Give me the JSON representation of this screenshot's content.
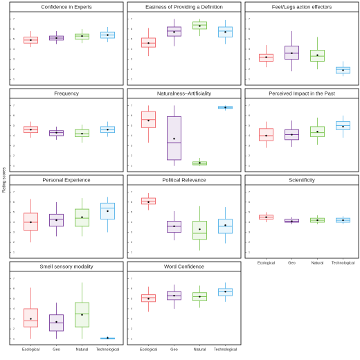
{
  "ylabel": "Rating scores",
  "categories": [
    "Ecological",
    "Geo",
    "Natural",
    "Technological"
  ],
  "colors": [
    "#f0676b",
    "#7b3f9e",
    "#7cc552",
    "#56b4e9"
  ],
  "ylim": [
    0.7,
    7.3
  ],
  "yticks": [
    1,
    2,
    3,
    4,
    5,
    6,
    7
  ],
  "chart_data": [
    {
      "type": "box",
      "title": "Confidence in Experts",
      "boxes": [
        {
          "low": 4.2,
          "q1": 4.6,
          "median": 4.9,
          "q3": 5.2,
          "high": 5.8,
          "mean": 4.9
        },
        {
          "low": 4.5,
          "q1": 4.9,
          "median": 5.1,
          "q3": 5.3,
          "high": 5.8,
          "mean": 5.1
        },
        {
          "low": 4.6,
          "q1": 5.0,
          "median": 5.3,
          "q3": 5.5,
          "high": 6.0,
          "mean": 5.3
        },
        {
          "low": 4.7,
          "q1": 5.1,
          "median": 5.4,
          "q3": 5.7,
          "high": 6.2,
          "mean": 5.4
        }
      ]
    },
    {
      "type": "box",
      "title": "Easiness of Providing a Definition",
      "boxes": [
        {
          "low": 3.3,
          "q1": 4.2,
          "median": 4.6,
          "q3": 5.1,
          "high": 6.1,
          "mean": 4.6
        },
        {
          "low": 4.3,
          "q1": 5.3,
          "median": 5.8,
          "q3": 6.2,
          "high": 7.0,
          "mean": 5.7
        },
        {
          "low": 5.3,
          "q1": 6.0,
          "median": 6.4,
          "q3": 6.7,
          "high": 7.0,
          "mean": 6.3
        },
        {
          "low": 4.5,
          "q1": 5.2,
          "median": 5.8,
          "q3": 6.2,
          "high": 6.9,
          "mean": 5.7
        }
      ]
    },
    {
      "type": "box",
      "title": "Feet/Legs action effectors",
      "boxes": [
        {
          "low": 2.2,
          "q1": 2.8,
          "median": 3.2,
          "q3": 3.5,
          "high": 4.4,
          "mean": 3.2
        },
        {
          "low": 1.8,
          "q1": 3.0,
          "median": 3.6,
          "q3": 4.3,
          "high": 5.8,
          "mean": 3.6
        },
        {
          "low": 2.0,
          "q1": 2.8,
          "median": 3.3,
          "q3": 3.9,
          "high": 5.2,
          "mean": 3.4
        },
        {
          "low": 1.3,
          "q1": 1.6,
          "median": 2.0,
          "q3": 2.2,
          "high": 2.8,
          "mean": 1.9
        }
      ]
    },
    {
      "type": "box",
      "title": "Frequency",
      "boxes": [
        {
          "low": 3.8,
          "q1": 4.3,
          "median": 4.6,
          "q3": 4.9,
          "high": 5.4,
          "mean": 4.6
        },
        {
          "low": 3.6,
          "q1": 4.0,
          "median": 4.3,
          "q3": 4.5,
          "high": 4.9,
          "mean": 4.3
        },
        {
          "low": 3.3,
          "q1": 3.9,
          "median": 4.2,
          "q3": 4.6,
          "high": 5.1,
          "mean": 4.2
        },
        {
          "low": 3.9,
          "q1": 4.3,
          "median": 4.6,
          "q3": 4.9,
          "high": 5.4,
          "mean": 4.6
        }
      ]
    },
    {
      "type": "box",
      "title": "Naturalness–Artificiality",
      "boxes": [
        {
          "low": 3.3,
          "q1": 4.8,
          "median": 5.6,
          "q3": 6.4,
          "high": 7.0,
          "mean": 5.5
        },
        {
          "low": 1.0,
          "q1": 1.6,
          "median": 3.3,
          "q3": 5.9,
          "high": 7.0,
          "mean": 3.7
        },
        {
          "low": 1.0,
          "q1": 1.1,
          "median": 1.2,
          "q3": 1.4,
          "high": 1.8,
          "mean": 1.3
        },
        {
          "low": 6.5,
          "q1": 6.7,
          "median": 6.8,
          "q3": 6.9,
          "high": 7.0,
          "mean": 6.8
        }
      ]
    },
    {
      "type": "box",
      "title": "Perceived Impact in the Past",
      "boxes": [
        {
          "low": 2.8,
          "q1": 3.5,
          "median": 4.0,
          "q3": 4.7,
          "high": 5.4,
          "mean": 4.0
        },
        {
          "low": 2.9,
          "q1": 3.6,
          "median": 4.1,
          "q3": 4.6,
          "high": 5.5,
          "mean": 4.1
        },
        {
          "low": 3.1,
          "q1": 3.9,
          "median": 4.3,
          "q3": 4.9,
          "high": 5.8,
          "mean": 4.4
        },
        {
          "low": 3.8,
          "q1": 4.6,
          "median": 5.0,
          "q3": 5.4,
          "high": 6.0,
          "mean": 4.9
        }
      ]
    },
    {
      "type": "box",
      "title": "Personal Experience",
      "boxes": [
        {
          "low": 2.0,
          "q1": 3.2,
          "median": 4.0,
          "q3": 4.9,
          "high": 6.3,
          "mean": 4.0
        },
        {
          "low": 2.6,
          "q1": 3.6,
          "median": 4.3,
          "q3": 4.8,
          "high": 6.0,
          "mean": 4.2
        },
        {
          "low": 2.6,
          "q1": 3.6,
          "median": 4.4,
          "q3": 5.3,
          "high": 6.4,
          "mean": 4.5
        },
        {
          "low": 3.0,
          "q1": 4.3,
          "median": 5.4,
          "q3": 5.9,
          "high": 6.5,
          "mean": 5.1
        }
      ]
    },
    {
      "type": "box",
      "title": "Political Relevance",
      "boxes": [
        {
          "low": 5.2,
          "q1": 5.8,
          "median": 6.1,
          "q3": 6.4,
          "high": 6.9,
          "mean": 6.0
        },
        {
          "low": 2.2,
          "q1": 3.0,
          "median": 3.6,
          "q3": 4.1,
          "high": 5.1,
          "mean": 3.6
        },
        {
          "low": 1.2,
          "q1": 2.3,
          "median": 2.9,
          "q3": 4.1,
          "high": 5.6,
          "mean": 3.3
        },
        {
          "low": 1.9,
          "q1": 2.9,
          "median": 3.6,
          "q3": 4.3,
          "high": 5.5,
          "mean": 3.7
        }
      ]
    },
    {
      "type": "box",
      "title": "Scientificity",
      "boxes": [
        {
          "low": 4.0,
          "q1": 4.3,
          "median": 4.5,
          "q3": 4.7,
          "high": 5.0,
          "mean": 4.5
        },
        {
          "low": 3.8,
          "q1": 4.0,
          "median": 4.1,
          "q3": 4.3,
          "high": 4.5,
          "mean": 4.1
        },
        {
          "low": 3.8,
          "q1": 4.0,
          "median": 4.2,
          "q3": 4.4,
          "high": 4.7,
          "mean": 4.2
        },
        {
          "low": 3.8,
          "q1": 4.0,
          "median": 4.2,
          "q3": 4.4,
          "high": 4.6,
          "mean": 4.2
        }
      ]
    },
    {
      "type": "box",
      "title": "Smell sensory modality",
      "boxes": [
        {
          "low": 1.0,
          "q1": 2.2,
          "median": 2.8,
          "q3": 4.0,
          "high": 6.1,
          "mean": 3.0
        },
        {
          "low": 1.0,
          "q1": 1.8,
          "median": 2.6,
          "q3": 3.4,
          "high": 4.6,
          "mean": 2.7
        },
        {
          "low": 1.0,
          "q1": 2.2,
          "median": 3.5,
          "q3": 4.6,
          "high": 6.6,
          "mean": 3.4
        },
        {
          "low": 1.0,
          "q1": 1.0,
          "median": 1.05,
          "q3": 1.1,
          "high": 1.3,
          "mean": 1.1
        }
      ]
    },
    {
      "type": "box",
      "title": "Word Confidence",
      "boxes": [
        {
          "low": 3.7,
          "q1": 4.7,
          "median": 5.1,
          "q3": 5.4,
          "high": 6.2,
          "mean": 5.0
        },
        {
          "low": 4.0,
          "q1": 4.9,
          "median": 5.3,
          "q3": 5.7,
          "high": 6.4,
          "mean": 5.3
        },
        {
          "low": 4.1,
          "q1": 4.8,
          "median": 5.2,
          "q3": 5.6,
          "high": 6.3,
          "mean": 5.2
        },
        {
          "low": 4.7,
          "q1": 5.3,
          "median": 5.7,
          "q3": 6.0,
          "high": 6.6,
          "mean": 5.7
        }
      ]
    }
  ]
}
